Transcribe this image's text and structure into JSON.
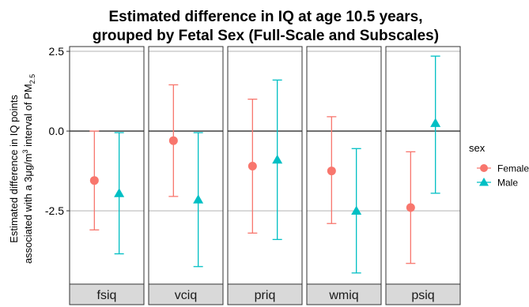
{
  "chart_data": {
    "type": "scatter",
    "title_line1": "Estimated difference in IQ at age 10.5 years,",
    "title_line2": "grouped by Fetal Sex  (Full-Scale and Subscales)",
    "ylabel_line1": "Estimated difference in IQ points",
    "ylabel_line2_pre": "associated with a 3μg/m",
    "ylabel_line2_sup": "3",
    "ylabel_line2_mid": " interval of PM",
    "ylabel_line2_sub": "2.5",
    "ylim": [
      -4.8,
      2.65
    ],
    "yticks": [
      2.5,
      0.0,
      -2.5
    ],
    "ytick_labels": [
      "2.5",
      "0.0",
      "-2.5"
    ],
    "hlines": [
      0,
      -2.5
    ],
    "panels": [
      "fsiq",
      "vciq",
      "priq",
      "wmiq",
      "psiq"
    ],
    "legend_title": "sex",
    "colors": {
      "Female": "#F8766D",
      "Male": "#00BFC4",
      "strip": "#d9d9d9",
      "grid": "#b3b3b3",
      "zero": "#000000"
    },
    "series": [
      {
        "name": "Female",
        "marker": "circle",
        "values": [
          -1.55,
          -0.3,
          -1.1,
          -1.25,
          -2.4
        ],
        "lower": [
          -3.1,
          -2.05,
          -3.2,
          -2.9,
          -4.15
        ],
        "upper": [
          0.0,
          1.45,
          1.0,
          0.45,
          -0.65
        ]
      },
      {
        "name": "Male",
        "marker": "triangle",
        "values": [
          -1.95,
          -2.15,
          -0.9,
          -2.5,
          0.25
        ],
        "lower": [
          -3.85,
          -4.25,
          -3.4,
          -4.45,
          -1.95
        ],
        "upper": [
          -0.05,
          -0.05,
          1.6,
          -0.55,
          2.35
        ]
      }
    ]
  }
}
